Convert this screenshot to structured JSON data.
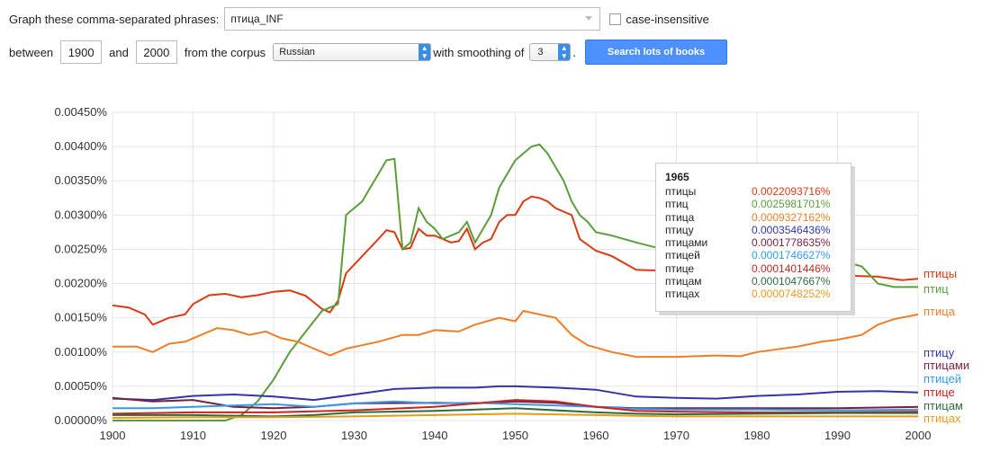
{
  "form": {
    "phrases_label": "Graph these comma-separated phrases:",
    "phrases_value": "птица_INF",
    "case_label": "case-insensitive",
    "between_label": "between",
    "start_year": "1900",
    "and_label": "and",
    "end_year": "2000",
    "corpus_label": "from the corpus",
    "corpus_value": "Russian",
    "smoothing_label": "with smoothing of",
    "smoothing_value": "3",
    "period": ".",
    "search_button": "Search lots of books"
  },
  "tooltip": {
    "year": "1965",
    "rows": [
      {
        "word": "птицы",
        "value": "0.0022093716%",
        "color": "#dc3912"
      },
      {
        "word": "птиц",
        "value": "0.0025981701%",
        "color": "#5a9e3a"
      },
      {
        "word": "птица",
        "value": "0.0009327162%",
        "color": "#f07c24"
      },
      {
        "word": "птицу",
        "value": "0.0003546436%",
        "color": "#3333aa"
      },
      {
        "word": "птицами",
        "value": "0.0001778635%",
        "color": "#7a1f3c"
      },
      {
        "word": "птицей",
        "value": "0.0001746627%",
        "color": "#3399ee"
      },
      {
        "word": "птице",
        "value": "0.0001401446%",
        "color": "#cc2222"
      },
      {
        "word": "птицам",
        "value": "0.0001047667%",
        "color": "#2e6b3a"
      },
      {
        "word": "птицах",
        "value": "0.0000748252%",
        "color": "#e89a1a"
      }
    ]
  },
  "chart_data": {
    "type": "line",
    "title": "",
    "xlabel": "",
    "ylabel": "",
    "xlim": [
      1900,
      2000
    ],
    "ylim": [
      0,
      0.0045
    ],
    "x_ticks": [
      "1900",
      "1910",
      "1920",
      "1930",
      "1940",
      "1950",
      "1960",
      "1970",
      "1980",
      "1990",
      "2000"
    ],
    "y_ticks": [
      "0.00000%",
      "0.00050%",
      "0.00100%",
      "0.00150%",
      "0.00200%",
      "0.00250%",
      "0.00300%",
      "0.00350%",
      "0.00400%",
      "0.00450%"
    ],
    "grid": true,
    "series": [
      {
        "name": "птицы",
        "color": "#dc3912",
        "points": [
          [
            1900,
            0.00168
          ],
          [
            1902,
            0.00165
          ],
          [
            1904,
            0.00155
          ],
          [
            1905,
            0.0014
          ],
          [
            1907,
            0.0015
          ],
          [
            1909,
            0.00155
          ],
          [
            1910,
            0.0017
          ],
          [
            1912,
            0.00183
          ],
          [
            1914,
            0.00185
          ],
          [
            1916,
            0.0018
          ],
          [
            1918,
            0.00183
          ],
          [
            1920,
            0.00188
          ],
          [
            1922,
            0.0019
          ],
          [
            1924,
            0.00182
          ],
          [
            1926,
            0.00163
          ],
          [
            1927,
            0.00158
          ],
          [
            1928,
            0.00175
          ],
          [
            1929,
            0.00215
          ],
          [
            1931,
            0.0024
          ],
          [
            1933,
            0.00265
          ],
          [
            1934,
            0.00278
          ],
          [
            1935,
            0.00275
          ],
          [
            1936,
            0.0025
          ],
          [
            1937,
            0.00252
          ],
          [
            1938,
            0.0028
          ],
          [
            1939,
            0.0027
          ],
          [
            1940,
            0.0027
          ],
          [
            1942,
            0.0026
          ],
          [
            1943,
            0.00262
          ],
          [
            1944,
            0.0028
          ],
          [
            1945,
            0.0025
          ],
          [
            1946,
            0.0026
          ],
          [
            1947,
            0.00265
          ],
          [
            1948,
            0.0029
          ],
          [
            1949,
            0.003
          ],
          [
            1950,
            0.003
          ],
          [
            1951,
            0.0032
          ],
          [
            1952,
            0.00327
          ],
          [
            1953,
            0.00325
          ],
          [
            1954,
            0.0032
          ],
          [
            1955,
            0.0031
          ],
          [
            1956,
            0.00305
          ],
          [
            1957,
            0.003
          ],
          [
            1958,
            0.00265
          ],
          [
            1960,
            0.00248
          ],
          [
            1962,
            0.0024
          ],
          [
            1965,
            0.0022
          ],
          [
            1970,
            0.00218
          ],
          [
            1975,
            0.00215
          ],
          [
            1980,
            0.00213
          ],
          [
            1985,
            0.0021
          ],
          [
            1990,
            0.00212
          ],
          [
            1995,
            0.0021
          ],
          [
            1998,
            0.00205
          ],
          [
            2000,
            0.00207
          ]
        ]
      },
      {
        "name": "птиц",
        "color": "#5a9e3a",
        "points": [
          [
            1900,
            0.0
          ],
          [
            1914,
            0.0
          ],
          [
            1916,
            8e-05
          ],
          [
            1918,
            0.00028
          ],
          [
            1920,
            0.0006
          ],
          [
            1922,
            0.001
          ],
          [
            1924,
            0.0013
          ],
          [
            1926,
            0.0016
          ],
          [
            1928,
            0.0017
          ],
          [
            1929,
            0.003
          ],
          [
            1931,
            0.0032
          ],
          [
            1932,
            0.0034
          ],
          [
            1933,
            0.0036
          ],
          [
            1934,
            0.0038
          ],
          [
            1935,
            0.00382
          ],
          [
            1936,
            0.0025
          ],
          [
            1937,
            0.0026
          ],
          [
            1938,
            0.0031
          ],
          [
            1939,
            0.0029
          ],
          [
            1940,
            0.0028
          ],
          [
            1941,
            0.00265
          ],
          [
            1942,
            0.0027
          ],
          [
            1943,
            0.00275
          ],
          [
            1944,
            0.0029
          ],
          [
            1945,
            0.0026
          ],
          [
            1946,
            0.0028
          ],
          [
            1947,
            0.003
          ],
          [
            1948,
            0.0034
          ],
          [
            1949,
            0.0036
          ],
          [
            1950,
            0.0038
          ],
          [
            1951,
            0.0039
          ],
          [
            1952,
            0.004
          ],
          [
            1953,
            0.00403
          ],
          [
            1954,
            0.0039
          ],
          [
            1955,
            0.0037
          ],
          [
            1956,
            0.0035
          ],
          [
            1957,
            0.0032
          ],
          [
            1958,
            0.003
          ],
          [
            1959,
            0.0029
          ],
          [
            1960,
            0.00275
          ],
          [
            1962,
            0.0027
          ],
          [
            1965,
            0.0026
          ],
          [
            1970,
            0.00245
          ],
          [
            1975,
            0.00238
          ],
          [
            1980,
            0.0024
          ],
          [
            1985,
            0.00235
          ],
          [
            1990,
            0.00235
          ],
          [
            1993,
            0.00225
          ],
          [
            1995,
            0.002
          ],
          [
            1997,
            0.00195
          ],
          [
            2000,
            0.00195
          ]
        ]
      },
      {
        "name": "птица",
        "color": "#f07c24",
        "points": [
          [
            1900,
            0.00108
          ],
          [
            1903,
            0.00108
          ],
          [
            1905,
            0.001
          ],
          [
            1907,
            0.00112
          ],
          [
            1909,
            0.00115
          ],
          [
            1911,
            0.00125
          ],
          [
            1913,
            0.00135
          ],
          [
            1915,
            0.00132
          ],
          [
            1917,
            0.00125
          ],
          [
            1919,
            0.0013
          ],
          [
            1921,
            0.0012
          ],
          [
            1923,
            0.00115
          ],
          [
            1925,
            0.00105
          ],
          [
            1927,
            0.00095
          ],
          [
            1929,
            0.00105
          ],
          [
            1931,
            0.0011
          ],
          [
            1933,
            0.00115
          ],
          [
            1936,
            0.00125
          ],
          [
            1938,
            0.00125
          ],
          [
            1940,
            0.00132
          ],
          [
            1943,
            0.0013
          ],
          [
            1945,
            0.0014
          ],
          [
            1948,
            0.0015
          ],
          [
            1950,
            0.00145
          ],
          [
            1951,
            0.0016
          ],
          [
            1953,
            0.00155
          ],
          [
            1955,
            0.0015
          ],
          [
            1957,
            0.00125
          ],
          [
            1959,
            0.0011
          ],
          [
            1962,
            0.001
          ],
          [
            1965,
            0.00093
          ],
          [
            1970,
            0.00093
          ],
          [
            1975,
            0.00095
          ],
          [
            1978,
            0.00094
          ],
          [
            1980,
            0.001
          ],
          [
            1985,
            0.00108
          ],
          [
            1988,
            0.00115
          ],
          [
            1990,
            0.00118
          ],
          [
            1993,
            0.00125
          ],
          [
            1995,
            0.0014
          ],
          [
            1997,
            0.00148
          ],
          [
            2000,
            0.00155
          ]
        ]
      },
      {
        "name": "птицу",
        "color": "#3333aa",
        "points": [
          [
            1900,
            0.00032
          ],
          [
            1905,
            0.0003
          ],
          [
            1910,
            0.00036
          ],
          [
            1915,
            0.00038
          ],
          [
            1920,
            0.00035
          ],
          [
            1925,
            0.0003
          ],
          [
            1930,
            0.00038
          ],
          [
            1935,
            0.00046
          ],
          [
            1940,
            0.00048
          ],
          [
            1945,
            0.00048
          ],
          [
            1948,
            0.0005
          ],
          [
            1950,
            0.0005
          ],
          [
            1955,
            0.00048
          ],
          [
            1960,
            0.00045
          ],
          [
            1965,
            0.00035
          ],
          [
            1970,
            0.00033
          ],
          [
            1975,
            0.00032
          ],
          [
            1980,
            0.00036
          ],
          [
            1985,
            0.00038
          ],
          [
            1990,
            0.00042
          ],
          [
            1995,
            0.00043
          ],
          [
            2000,
            0.00041
          ]
        ]
      },
      {
        "name": "птицами",
        "color": "#7a1f3c",
        "points": [
          [
            1900,
            0.00033
          ],
          [
            1905,
            0.00028
          ],
          [
            1910,
            0.0003
          ],
          [
            1915,
            0.0002
          ],
          [
            1920,
            0.00018
          ],
          [
            1925,
            0.0002
          ],
          [
            1930,
            0.00025
          ],
          [
            1940,
            0.00026
          ],
          [
            1945,
            0.00025
          ],
          [
            1950,
            0.00028
          ],
          [
            1955,
            0.00026
          ],
          [
            1960,
            0.0002
          ],
          [
            1965,
            0.00018
          ],
          [
            1970,
            0.00018
          ],
          [
            1980,
            0.00018
          ],
          [
            1990,
            0.00018
          ],
          [
            2000,
            0.0002
          ]
        ]
      },
      {
        "name": "птицей",
        "color": "#3399ee",
        "points": [
          [
            1900,
            0.00018
          ],
          [
            1905,
            0.00018
          ],
          [
            1910,
            0.0002
          ],
          [
            1915,
            0.00022
          ],
          [
            1920,
            0.00024
          ],
          [
            1925,
            0.0002
          ],
          [
            1930,
            0.00025
          ],
          [
            1935,
            0.00028
          ],
          [
            1940,
            0.00025
          ],
          [
            1945,
            0.00026
          ],
          [
            1950,
            0.00024
          ],
          [
            1955,
            0.00022
          ],
          [
            1960,
            0.0002
          ],
          [
            1965,
            0.00017
          ],
          [
            1970,
            0.00016
          ],
          [
            1980,
            0.00016
          ],
          [
            1990,
            0.00015
          ],
          [
            2000,
            0.00016
          ]
        ]
      },
      {
        "name": "птице",
        "color": "#cc2222",
        "points": [
          [
            1900,
            0.0001
          ],
          [
            1910,
            0.00012
          ],
          [
            1920,
            0.00012
          ],
          [
            1930,
            0.00015
          ],
          [
            1940,
            0.0002
          ],
          [
            1950,
            0.0003
          ],
          [
            1955,
            0.00028
          ],
          [
            1960,
            0.0002
          ],
          [
            1965,
            0.00014
          ],
          [
            1970,
            0.00013
          ],
          [
            1980,
            0.00012
          ],
          [
            1990,
            0.00012
          ],
          [
            2000,
            0.00013
          ]
        ]
      },
      {
        "name": "птицам",
        "color": "#2e6b3a",
        "points": [
          [
            1900,
            8e-05
          ],
          [
            1910,
            8e-05
          ],
          [
            1920,
            6e-05
          ],
          [
            1925,
            8e-05
          ],
          [
            1930,
            0.00012
          ],
          [
            1940,
            0.00014
          ],
          [
            1950,
            0.00018
          ],
          [
            1960,
            0.00012
          ],
          [
            1965,
            0.0001
          ],
          [
            1970,
            9e-05
          ],
          [
            1980,
            0.0001
          ],
          [
            1990,
            0.00011
          ],
          [
            2000,
            0.00011
          ]
        ]
      },
      {
        "name": "птицах",
        "color": "#e89a1a",
        "points": [
          [
            1900,
            4e-05
          ],
          [
            1910,
            5e-05
          ],
          [
            1920,
            5e-05
          ],
          [
            1930,
            6e-05
          ],
          [
            1940,
            8e-05
          ],
          [
            1950,
            0.0001
          ],
          [
            1960,
            8e-05
          ],
          [
            1965,
            7e-05
          ],
          [
            1970,
            6e-05
          ],
          [
            1980,
            6e-05
          ],
          [
            1990,
            6e-05
          ],
          [
            2000,
            6e-05
          ]
        ]
      }
    ]
  }
}
